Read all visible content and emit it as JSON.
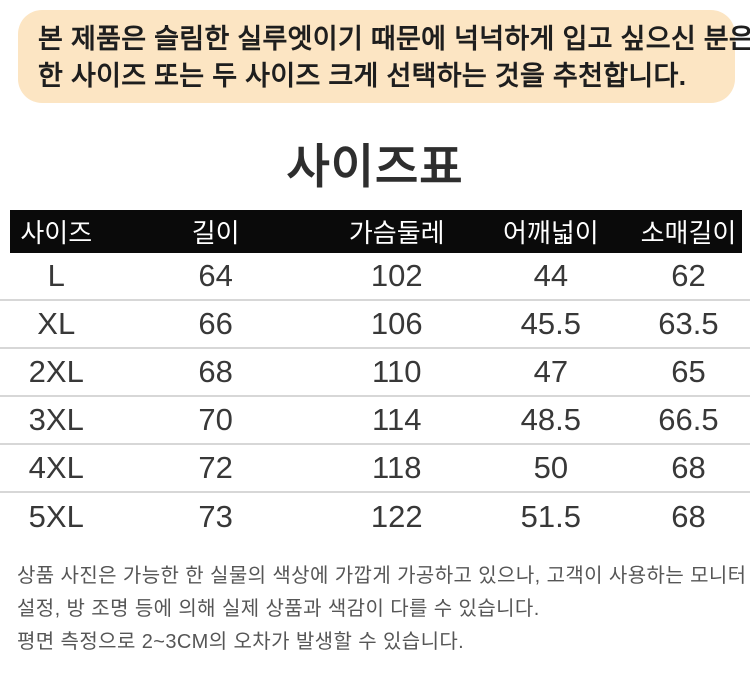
{
  "banner": {
    "bg_color": "#fce5c3",
    "text_color": "#1e1e1e",
    "line1": "본 제품은 슬림한 실루엣이기 때문에 넉넉하게 입고 싶으신 분은",
    "line2": "한 사이즈 또는 두 사이즈 크게 선택하는 것을 추천합니다."
  },
  "title": "사이즈표",
  "table": {
    "header_bg": "#0a0a0a",
    "header_text_color": "#ffffff",
    "divider_color": "#d7d7d7",
    "headers": [
      "사이즈",
      "길이",
      "가슴둘레",
      "어깨넓이",
      "소매길이"
    ],
    "rows": [
      {
        "size": "L",
        "length": "64",
        "chest": "102",
        "shoulder": "44",
        "sleeve": "62"
      },
      {
        "size": "XL",
        "length": "66",
        "chest": "106",
        "shoulder": "45.5",
        "sleeve": "63.5"
      },
      {
        "size": "2XL",
        "length": "68",
        "chest": "110",
        "shoulder": "47",
        "sleeve": "65"
      },
      {
        "size": "3XL",
        "length": "70",
        "chest": "114",
        "shoulder": "48.5",
        "sleeve": "66.5"
      },
      {
        "size": "4XL",
        "length": "72",
        "chest": "118",
        "shoulder": "50",
        "sleeve": "68"
      },
      {
        "size": "5XL",
        "length": "73",
        "chest": "122",
        "shoulder": "51.5",
        "sleeve": "68"
      }
    ]
  },
  "notes": {
    "line1": "상품 사진은 가능한 한 실물의 색상에 가깝게 가공하고 있으나, 고객이 사용하는 모니터",
    "line2": "설정, 방 조명 등에 의해 실제 상품과 색감이 다를 수 있습니다.",
    "line3": "평면 측정으로 2~3CM의 오차가 발생할 수 있습니다."
  }
}
